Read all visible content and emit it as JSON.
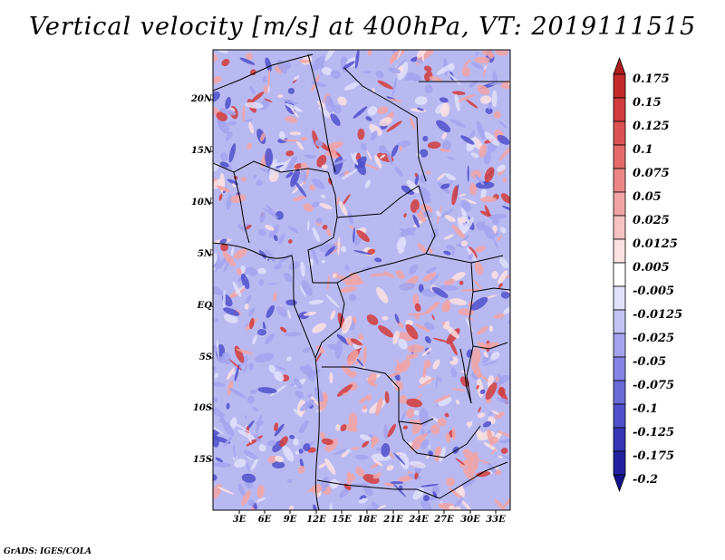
{
  "title": "Vertical velocity [m/s] at 400hPa, VT: 2019111515",
  "credit": "GrADS: IGES/COLA",
  "lat_labels": [
    "20N",
    "15N",
    "10N",
    "5N",
    "EQ",
    "5S",
    "10S",
    "15S"
  ],
  "lon_labels": [
    "3E",
    "6E",
    "9E",
    "12E",
    "15E",
    "18E",
    "21E",
    "24E",
    "27E",
    "30E",
    "33E"
  ],
  "colorbar": {
    "labels": [
      "0.175",
      "0.15",
      "0.125",
      "0.1",
      "0.075",
      "0.05",
      "0.025",
      "0.0125",
      "0.005",
      "-0.005",
      "-0.0125",
      "-0.025",
      "-0.05",
      "-0.075",
      "-0.1",
      "-0.125",
      "-0.175",
      "-0.2"
    ],
    "colors": [
      "#b01b1b",
      "#c42a2a",
      "#d23c3c",
      "#dc5252",
      "#e56a6a",
      "#ec8686",
      "#f2a3a3",
      "#f7c2c2",
      "#fbe1e1",
      "#ffffff",
      "#e1e1fb",
      "#c3c3f5",
      "#a3a3ee",
      "#8585e6",
      "#6a6ad9",
      "#5050cc",
      "#3535b5",
      "#2222a0",
      "#12128a"
    ]
  },
  "map_colors": {
    "strong_up": "#d23c3c",
    "up": "#f2a3a3",
    "weak_up": "#fbe1e1",
    "weak_down": "#e1e1fb",
    "down": "#a3a3ee",
    "strong_down": "#5050cc",
    "border": "#000000"
  }
}
